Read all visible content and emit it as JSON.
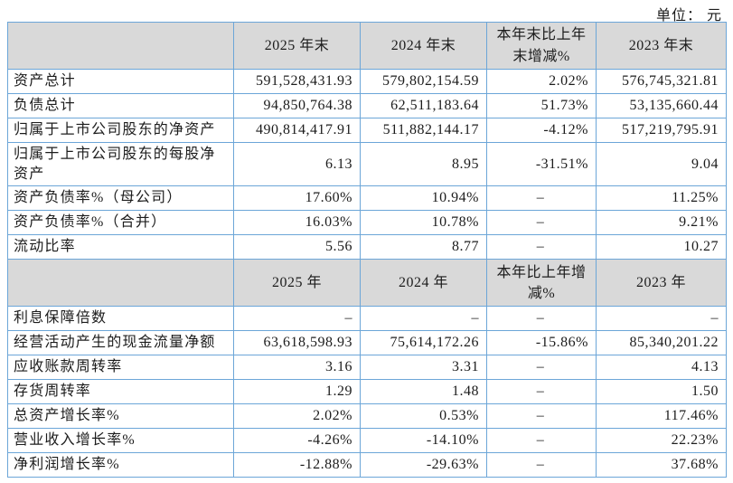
{
  "unit_label": "单位： 元",
  "colors": {
    "border": "#6ca6d8",
    "header_bg": "#d9d9d9",
    "text": "#1c1c1c"
  },
  "table": {
    "sections": [
      {
        "header": [
          "",
          "2025 年末",
          "2024 年末",
          "本年末比上年末增减%",
          "2023 年末"
        ],
        "rows": [
          {
            "label": "资产总计",
            "values": [
              "591,528,431.93",
              "579,802,154.59",
              "2.02%",
              "576,745,321.81"
            ]
          },
          {
            "label": "负债总计",
            "values": [
              "94,850,764.38",
              "62,511,183.64",
              "51.73%",
              "53,135,660.44"
            ]
          },
          {
            "label": "归属于上市公司股东的净资产",
            "values": [
              "490,814,417.91",
              "511,882,144.17",
              "-4.12%",
              "517,219,795.91"
            ]
          },
          {
            "label": "归属于上市公司股东的每股净资产",
            "values": [
              "6.13",
              "8.95",
              "-31.51%",
              "9.04"
            ]
          },
          {
            "label": "资产负债率%（母公司）",
            "values": [
              "17.60%",
              "10.94%",
              "–",
              "11.25%"
            ]
          },
          {
            "label": "资产负债率%（合并）",
            "values": [
              "16.03%",
              "10.78%",
              "–",
              "9.21%"
            ]
          },
          {
            "label": "流动比率",
            "values": [
              "5.56",
              "8.77",
              "–",
              "10.27"
            ]
          }
        ]
      },
      {
        "header": [
          "",
          "2025 年",
          "2024 年",
          "本年比上年增减%",
          "2023 年"
        ],
        "rows": [
          {
            "label": "利息保障倍数",
            "values": [
              "–",
              "–",
              "–",
              "–"
            ]
          },
          {
            "label": "经营活动产生的现金流量净额",
            "values": [
              "63,618,598.93",
              "75,614,172.26",
              "-15.86%",
              "85,340,201.22"
            ]
          },
          {
            "label": "应收账款周转率",
            "values": [
              "3.16",
              "3.31",
              "–",
              "4.13"
            ]
          },
          {
            "label": "存货周转率",
            "values": [
              "1.29",
              "1.48",
              "–",
              "1.50"
            ]
          },
          {
            "label": "总资产增长率%",
            "values": [
              "2.02%",
              "0.53%",
              "–",
              "117.46%"
            ]
          },
          {
            "label": "营业收入增长率%",
            "values": [
              "-4.26%",
              "-14.10%",
              "–",
              "22.23%"
            ]
          },
          {
            "label": "净利润增长率%",
            "values": [
              "-12.88%",
              "-29.63%",
              "–",
              "37.68%"
            ]
          }
        ]
      }
    ]
  }
}
